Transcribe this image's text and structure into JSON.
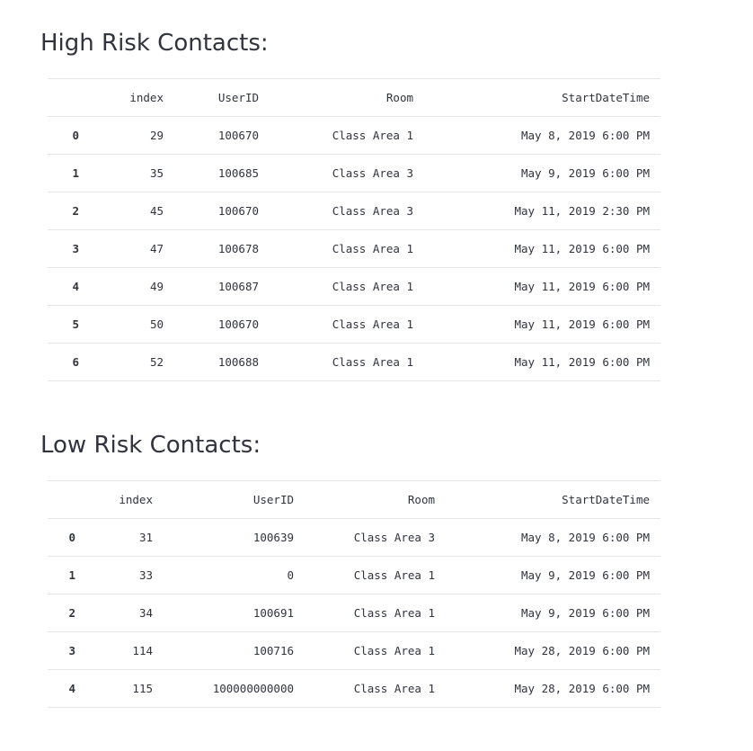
{
  "high": {
    "title": "High Risk Contacts:",
    "columns": [
      "",
      "index",
      "UserID",
      "Room",
      "StartDateTime"
    ],
    "rows": [
      [
        "0",
        "29",
        "100670",
        "Class Area 1",
        "May 8, 2019 6:00 PM"
      ],
      [
        "1",
        "35",
        "100685",
        "Class Area 3",
        "May 9, 2019 6:00 PM"
      ],
      [
        "2",
        "45",
        "100670",
        "Class Area 3",
        "May 11, 2019 2:30 PM"
      ],
      [
        "3",
        "47",
        "100678",
        "Class Area 1",
        "May 11, 2019 6:00 PM"
      ],
      [
        "4",
        "49",
        "100687",
        "Class Area 1",
        "May 11, 2019 6:00 PM"
      ],
      [
        "5",
        "50",
        "100670",
        "Class Area 1",
        "May 11, 2019 6:00 PM"
      ],
      [
        "6",
        "52",
        "100688",
        "Class Area 1",
        "May 11, 2019 6:00 PM"
      ]
    ]
  },
  "low": {
    "title": "Low Risk Contacts:",
    "columns": [
      "",
      "index",
      "UserID",
      "Room",
      "StartDateTime"
    ],
    "rows": [
      [
        "0",
        "31",
        "100639",
        "Class Area 3",
        "May 8, 2019 6:00 PM"
      ],
      [
        "1",
        "33",
        "0",
        "Class Area 1",
        "May 9, 2019 6:00 PM"
      ],
      [
        "2",
        "34",
        "100691",
        "Class Area 1",
        "May 9, 2019 6:00 PM"
      ],
      [
        "3",
        "114",
        "100716",
        "Class Area 1",
        "May 28, 2019 6:00 PM"
      ],
      [
        "4",
        "115",
        "100000000000",
        "Class Area 1",
        "May 28, 2019 6:00 PM"
      ]
    ]
  }
}
